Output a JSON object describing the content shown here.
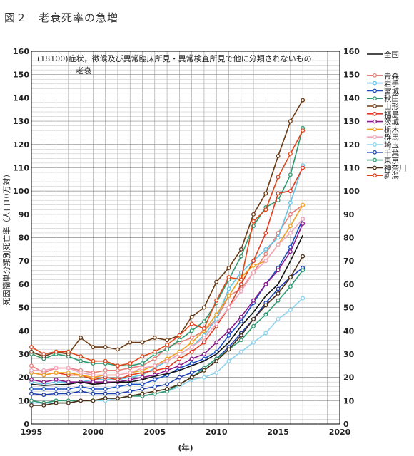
{
  "figure_title": "図２　老衰死率の急増",
  "chart_data": {
    "type": "line",
    "title": "",
    "note_line1": "(18100)症状，徴候及び異常臨床所見・異常検査所見で他に分類されないもの",
    "note_line2": "−老衰",
    "xlabel": "(年)",
    "ylabel": "死因簡単分類別死亡率（人口10万対）",
    "xlim": [
      1995,
      2020
    ],
    "ylim": [
      0,
      160
    ],
    "x_ticks": [
      1995,
      2000,
      2005,
      2010,
      2015,
      2020
    ],
    "y_ticks": [
      0,
      10,
      20,
      30,
      40,
      50,
      60,
      70,
      80,
      90,
      100,
      110,
      120,
      130,
      140,
      150,
      160
    ],
    "grid": true,
    "legend_position": "right",
    "x": [
      1995,
      1996,
      1997,
      1998,
      1999,
      2000,
      2001,
      2002,
      2003,
      2004,
      2005,
      2006,
      2007,
      2008,
      2009,
      2010,
      2011,
      2012,
      2013,
      2014,
      2015,
      2016,
      2017
    ],
    "series": [
      {
        "name": "全国",
        "color": "#111111",
        "marker": false,
        "values": [
          17,
          16.5,
          16.8,
          17,
          18,
          17,
          17.5,
          18,
          18,
          19,
          20.5,
          21.5,
          23,
          25,
          27,
          30,
          35,
          42,
          48,
          55,
          60,
          70,
          81
        ]
      },
      {
        "name": "青森",
        "color": "#e8807a",
        "marker": true,
        "values": [
          25,
          22,
          24,
          24,
          23,
          22,
          23,
          23,
          24,
          25,
          28,
          33,
          35,
          37,
          40,
          45,
          55,
          58,
          65,
          73,
          82,
          90,
          94
        ]
      },
      {
        "name": "岩手",
        "color": "#62c3e6",
        "marker": true,
        "values": [
          18,
          17,
          18,
          18,
          18,
          19,
          19,
          19,
          20,
          21,
          24,
          27,
          30,
          33,
          38,
          45,
          58,
          65,
          70,
          75,
          80,
          95,
          111
        ]
      },
      {
        "name": "宮城",
        "color": "#1a4fc7",
        "marker": true,
        "values": [
          15,
          15,
          15,
          15,
          16,
          15,
          15,
          16,
          17,
          17,
          19,
          21,
          24,
          26,
          28,
          31,
          38,
          44,
          52,
          60,
          67,
          76,
          88
        ]
      },
      {
        "name": "秋田",
        "color": "#2f9a6f",
        "marker": true,
        "values": [
          30,
          28,
          30,
          29,
          27,
          26,
          26,
          25,
          25,
          26,
          30,
          32,
          36,
          40,
          44,
          52,
          62,
          72,
          85,
          93,
          96,
          107,
          127
        ]
      },
      {
        "name": "山形",
        "color": "#6b3a14",
        "marker": true,
        "values": [
          31,
          29,
          31,
          30,
          37,
          33,
          33,
          32,
          35,
          35,
          37,
          36,
          38,
          46,
          50,
          61,
          67,
          75,
          90,
          99,
          115,
          130,
          139
        ]
      },
      {
        "name": "福島",
        "color": "#e23b20",
        "marker": true,
        "values": [
          22,
          21,
          22,
          21,
          21,
          19,
          20,
          19,
          21,
          22,
          23,
          24,
          28,
          31,
          35,
          42,
          50,
          60,
          70,
          82,
          99,
          100,
          110
        ]
      },
      {
        "name": "茨城",
        "color": "#8b1a8b",
        "marker": true,
        "values": [
          19,
          18,
          19,
          18,
          18,
          18,
          18,
          18,
          19,
          20,
          21,
          23,
          25,
          28,
          30,
          35,
          40,
          46,
          53,
          60,
          66,
          74,
          86
        ]
      },
      {
        "name": "栃木",
        "color": "#f0a020",
        "marker": true,
        "values": [
          22,
          21,
          22,
          22,
          21,
          20,
          21,
          21,
          22,
          23,
          25,
          28,
          31,
          35,
          40,
          47,
          55,
          63,
          68,
          70,
          77,
          85,
          94
        ]
      },
      {
        "name": "群馬",
        "color": "#f1a5b8",
        "marker": true,
        "values": [
          23,
          23,
          24,
          24,
          22,
          21,
          21,
          21,
          22,
          24,
          25,
          27,
          30,
          33,
          37,
          43,
          50,
          57,
          65,
          70,
          77,
          82,
          88
        ]
      },
      {
        "name": "埼玉",
        "color": "#8fd3ef",
        "marker": true,
        "values": [
          9,
          9,
          9,
          9,
          10,
          10,
          10,
          11,
          12,
          12,
          13,
          14,
          16,
          19,
          20,
          22,
          27,
          31,
          35,
          39,
          45,
          49,
          54
        ]
      },
      {
        "name": "千葉",
        "color": "#1c3fae",
        "marker": true,
        "values": [
          13,
          12.5,
          13,
          13,
          14,
          13,
          13,
          13,
          14,
          15,
          16,
          17,
          20,
          22,
          24,
          28,
          33,
          39,
          45,
          52,
          58,
          63,
          67
        ]
      },
      {
        "name": "東京",
        "color": "#2e9a72",
        "marker": true,
        "values": [
          10,
          9,
          10,
          10,
          10,
          10,
          11,
          11,
          12,
          12,
          13,
          14,
          17,
          20,
          24,
          28,
          32,
          36,
          42,
          47,
          53,
          59,
          66
        ]
      },
      {
        "name": "神奈川",
        "color": "#4a2d14",
        "marker": true,
        "values": [
          8,
          8,
          9,
          9,
          10,
          10,
          11,
          11,
          12,
          13,
          14,
          15,
          17,
          20,
          23,
          27,
          32,
          38,
          45,
          51,
          56,
          63,
          72
        ]
      },
      {
        "name": "新潟",
        "color": "#e0461a",
        "marker": true,
        "values": [
          33,
          30,
          31,
          31,
          29,
          27,
          27,
          25,
          26,
          29,
          31,
          34,
          38,
          43,
          41,
          53,
          63,
          62,
          87,
          92,
          106,
          116,
          126
        ]
      }
    ]
  }
}
